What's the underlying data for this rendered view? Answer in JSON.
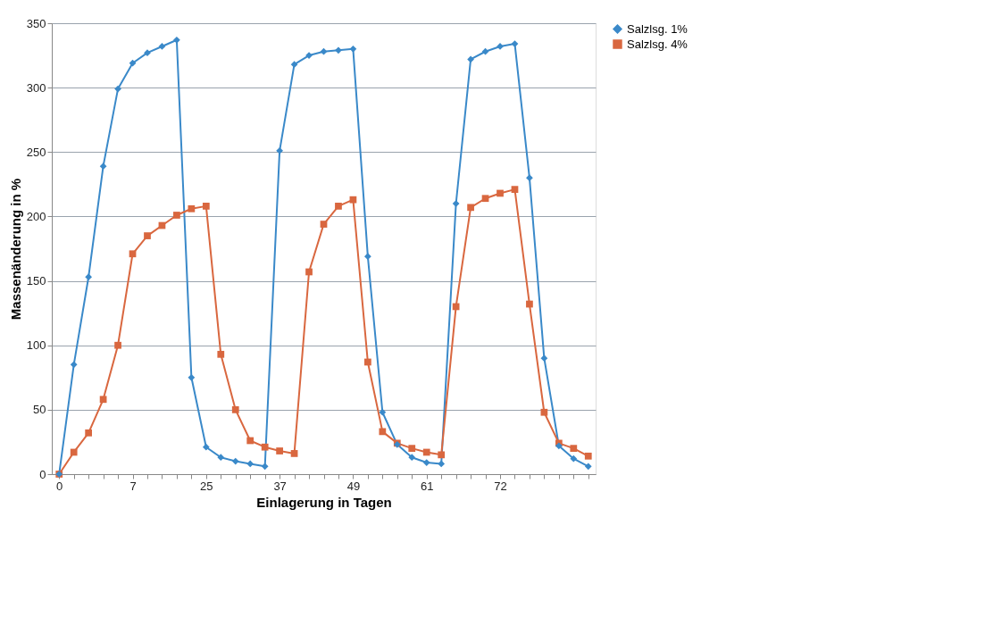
{
  "chart_data": {
    "type": "line",
    "xlabel": "Einlagerung in Tagen",
    "ylabel": "Massenänderung in %",
    "categories": [
      "0",
      null,
      null,
      null,
      null,
      "7",
      null,
      null,
      null,
      null,
      "25",
      null,
      null,
      null,
      null,
      "37",
      null,
      null,
      null,
      null,
      "49",
      null,
      null,
      null,
      null,
      "61",
      null,
      null,
      null,
      null,
      "72",
      null,
      null,
      null,
      null,
      null,
      null
    ],
    "series": [
      {
        "name": "Salzlsg. 1%",
        "color": "#3a89c9",
        "marker": "diamond",
        "values": [
          0,
          85,
          153,
          239,
          299,
          319,
          327,
          332,
          337,
          75,
          21,
          13,
          10,
          8,
          6,
          251,
          318,
          325,
          328,
          329,
          330,
          169,
          48,
          23,
          13,
          9,
          8,
          210,
          322,
          328,
          332,
          334,
          230,
          90,
          22,
          12,
          6
        ]
      },
      {
        "name": "Salzlsg. 4%",
        "color": "#d9673f",
        "marker": "square",
        "values": [
          0,
          17,
          32,
          58,
          100,
          171,
          185,
          193,
          201,
          206,
          208,
          93,
          50,
          26,
          21,
          18,
          16,
          157,
          194,
          208,
          213,
          87,
          33,
          24,
          20,
          17,
          15,
          130,
          207,
          214,
          218,
          221,
          132,
          48,
          24,
          20,
          14
        ]
      }
    ],
    "ylim": [
      0,
      350
    ],
    "yticks": [
      0,
      50,
      100,
      150,
      200,
      250,
      300,
      350
    ],
    "grid": "y",
    "legend": "right",
    "line_style": "solid"
  }
}
